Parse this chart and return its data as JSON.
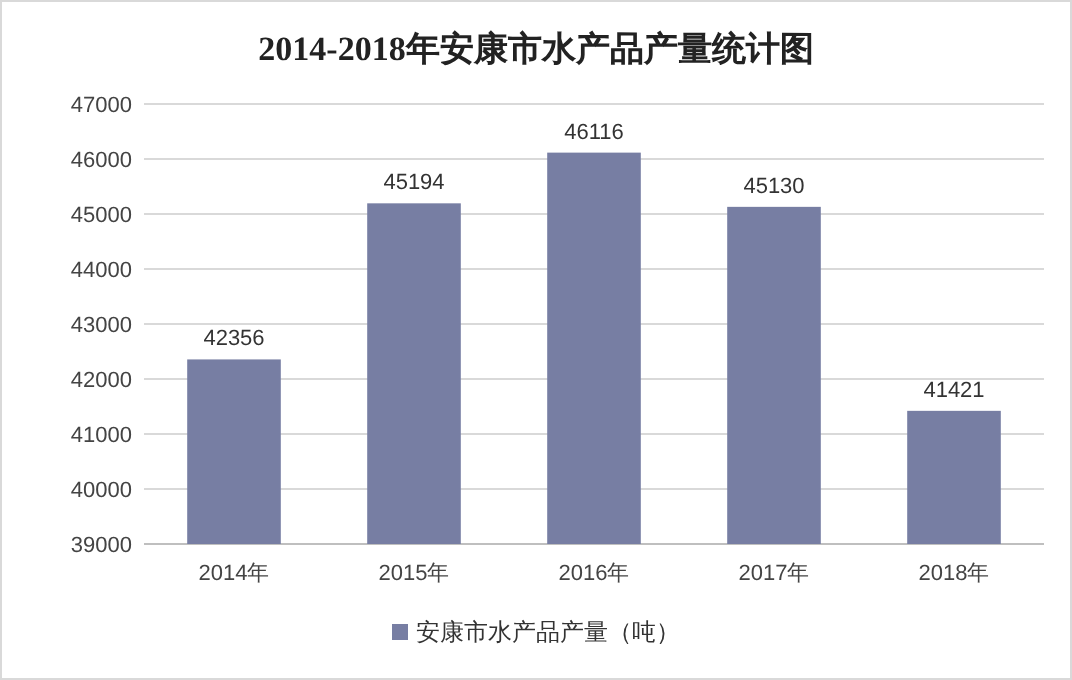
{
  "chart_data": {
    "type": "bar",
    "title": "2014-2018年安康市水产品产量统计图",
    "categories": [
      "2014年",
      "2015年",
      "2016年",
      "2017年",
      "2018年"
    ],
    "series": [
      {
        "name": "安康市水产品产量（吨）",
        "color": "#777ea3",
        "values": [
          42356,
          45194,
          46116,
          45130,
          41421
        ]
      }
    ],
    "ylim": [
      39000,
      47000
    ],
    "yticks": [
      39000,
      40000,
      41000,
      42000,
      43000,
      44000,
      45000,
      46000,
      47000
    ],
    "grid": "y",
    "legend": "bottom",
    "data_labels": true
  }
}
